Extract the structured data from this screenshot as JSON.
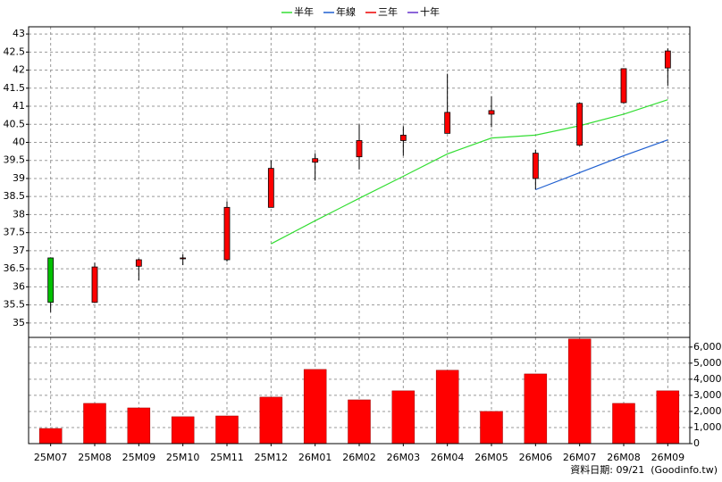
{
  "chart_data": [
    {
      "type": "candlestick",
      "categories": [
        "25M07",
        "25M08",
        "25M09",
        "25M10",
        "25M11",
        "25M12",
        "26M01",
        "26M02",
        "26M03",
        "26M04",
        "26M05",
        "26M06",
        "26M07",
        "26M08",
        "26M09"
      ],
      "open": [
        36.8,
        35.57,
        36.57,
        36.78,
        36.75,
        38.2,
        39.45,
        39.6,
        40.05,
        40.25,
        40.78,
        39.0,
        39.92,
        41.1,
        42.06
      ],
      "high": [
        36.8,
        36.67,
        36.78,
        36.9,
        38.37,
        39.5,
        39.7,
        40.5,
        40.45,
        41.9,
        41.28,
        39.8,
        41.1,
        42.05,
        42.6
      ],
      "low": [
        35.3,
        35.55,
        36.18,
        36.6,
        36.7,
        38.2,
        38.94,
        39.25,
        39.63,
        40.25,
        40.42,
        38.7,
        39.9,
        41.08,
        41.57
      ],
      "close": [
        35.57,
        36.55,
        36.75,
        36.8,
        38.2,
        39.28,
        39.55,
        40.05,
        40.2,
        40.83,
        40.88,
        39.7,
        41.08,
        42.04,
        42.53
      ],
      "up_color": "#ff0000",
      "down_color": "#00c000",
      "series": [
        {
          "name": "半年",
          "color": "#33dd33",
          "values": [
            null,
            null,
            null,
            null,
            null,
            37.19,
            37.83,
            38.45,
            39.06,
            39.68,
            40.12,
            40.2,
            40.46,
            40.78,
            41.18
          ]
        },
        {
          "name": "年線",
          "color": "#1f5fd0",
          "values": [
            null,
            null,
            null,
            null,
            null,
            null,
            null,
            null,
            null,
            null,
            null,
            38.69,
            39.16,
            39.63,
            40.07
          ]
        },
        {
          "name": "三年",
          "color": "#ee0000",
          "values": [
            null,
            null,
            null,
            null,
            null,
            null,
            null,
            null,
            null,
            null,
            null,
            null,
            null,
            null,
            null
          ]
        },
        {
          "name": "十年",
          "color": "#6633cc",
          "values": [
            null,
            null,
            null,
            null,
            null,
            null,
            null,
            null,
            null,
            null,
            null,
            null,
            null,
            null,
            null
          ]
        }
      ],
      "ylim": [
        34.6,
        43.2
      ],
      "yticks": [
        35,
        35.5,
        36,
        36.5,
        37,
        37.5,
        38,
        38.5,
        39,
        39.5,
        40,
        40.5,
        41,
        41.5,
        42,
        42.5,
        43
      ],
      "grid": true
    },
    {
      "type": "bar",
      "categories": [
        "25M07",
        "25M08",
        "25M09",
        "25M10",
        "25M11",
        "25M12",
        "26M01",
        "26M02",
        "26M03",
        "26M04",
        "26M05",
        "26M06",
        "26M07",
        "26M08",
        "26M09"
      ],
      "values": [
        940,
        2500,
        2220,
        1670,
        1720,
        2890,
        4610,
        2720,
        3280,
        4560,
        2000,
        4330,
        6500,
        2500,
        3280
      ],
      "color": "#ff0000",
      "ylim": [
        0,
        6600
      ],
      "yticks": [
        0,
        {
          "value": 1000,
          "label": "1,000"
        },
        {
          "value": 2000,
          "label": "2,000"
        },
        {
          "value": 3000,
          "label": "3,000"
        },
        {
          "value": 4000,
          "label": "4,000"
        },
        {
          "value": 5000,
          "label": "5,000"
        },
        {
          "value": 6000,
          "label": "6,000"
        }
      ],
      "grid": true
    }
  ],
  "footer": "資料日期: 09/21  (Goodinfo.tw)"
}
